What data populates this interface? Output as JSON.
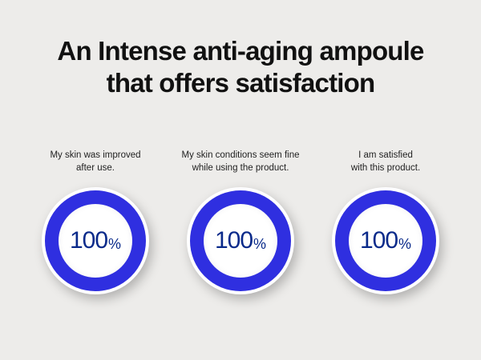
{
  "title": [
    "An Intense anti-aging ampoule",
    "that offers satisfaction"
  ],
  "colors": {
    "ring": "#2f2fe0",
    "number": "#0a2a8a",
    "background": "#edecea"
  },
  "items": [
    {
      "caption": [
        "My skin was improved",
        "after use."
      ],
      "value": "100",
      "unit": "%"
    },
    {
      "caption": [
        "My skin conditions seem fine",
        "while using the product."
      ],
      "value": "100",
      "unit": "%"
    },
    {
      "caption": [
        "I am satisfied",
        "with this product."
      ],
      "value": "100",
      "unit": "%"
    }
  ]
}
